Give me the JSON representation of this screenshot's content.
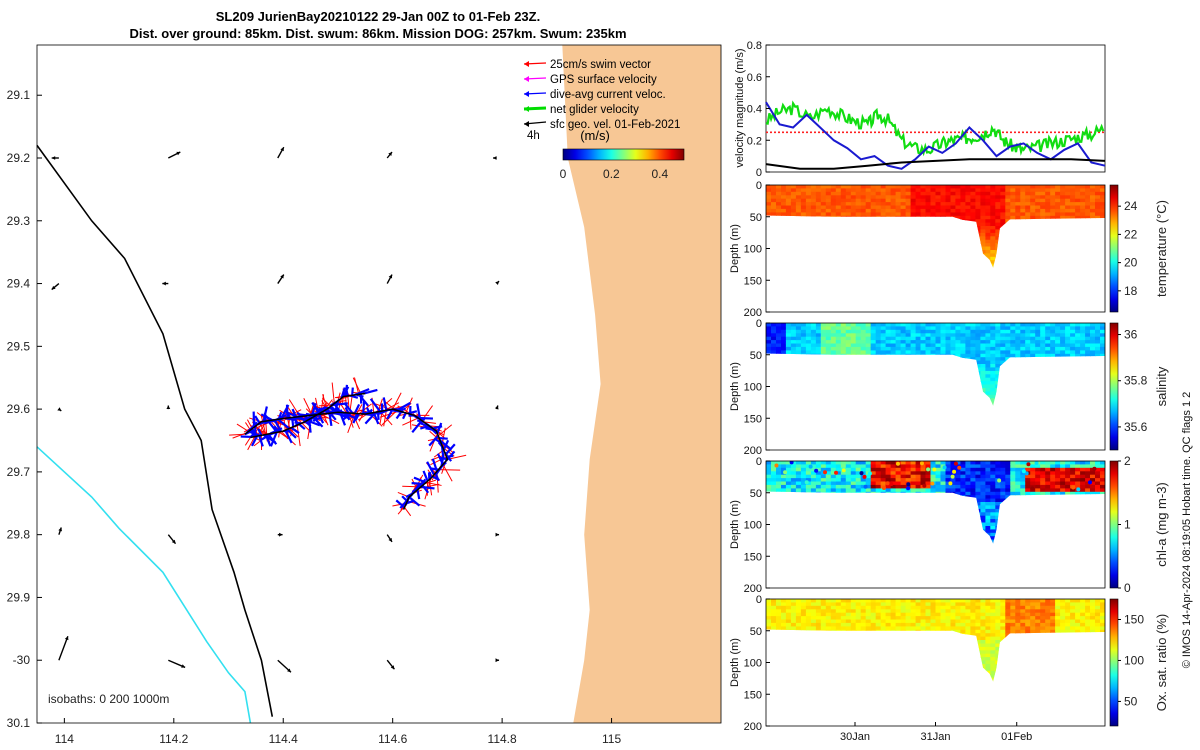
{
  "chart_data": [
    {
      "type": "map",
      "title": [
        "SL209 JurienBay20210122 29-Jan 00Z to 01-Feb 23Z.",
        "Dist. over ground: 85km. Dist. swum: 86km. Mission DOG: 257km. Swum: 235km"
      ],
      "xlim": [
        113.95,
        115.2
      ],
      "ylim": [
        30.1,
        29.02
      ],
      "x_ticks": [
        114,
        114.2,
        114.4,
        114.6,
        114.8,
        115
      ],
      "x_tick_labels": [
        "114",
        "114.2",
        "114.4",
        "114.6",
        "114.8",
        "115"
      ],
      "y_ticks": [
        29.1,
        29.2,
        29.3,
        29.4,
        29.5,
        29.6,
        29.7,
        29.8,
        29.9,
        30.0,
        30.1
      ],
      "y_tick_labels": [
        "29.1",
        "29.2",
        "29.3",
        "29.4",
        "29.5",
        "29.6",
        "29.7",
        "29.8",
        "29.9",
        "-30",
        "30.1"
      ],
      "legend": [
        "25cm/s swim vector",
        "GPS surface velocity",
        "dive-avg current veloc.",
        "net glider velocity",
        "sfc geo. vel. 01-Feb-2021"
      ],
      "legend_colors": [
        "#ff0000",
        "#ff00ff",
        "#0000ff",
        "#00dd00",
        "#000000"
      ],
      "legend_extra": "4h",
      "colorbar": {
        "label": "(m/s)",
        "ticks": [
          "0",
          "0.2",
          "0.4"
        ],
        "range": [
          0,
          0.5
        ]
      },
      "isobaths_label": "isobaths: 0   200  1000m",
      "coast_color": "#f7c795",
      "isobath_200_color": "#000000",
      "isobath_1000_color": "#33e0f0",
      "track": [
        [
          114.33,
          29.64
        ],
        [
          114.36,
          29.62
        ],
        [
          114.4,
          29.615
        ],
        [
          114.45,
          29.61
        ],
        [
          114.5,
          29.605
        ],
        [
          114.55,
          29.608
        ],
        [
          114.6,
          29.6
        ],
        [
          114.64,
          29.61
        ],
        [
          114.68,
          29.635
        ],
        [
          114.7,
          29.68
        ],
        [
          114.67,
          29.71
        ],
        [
          114.63,
          29.74
        ],
        [
          114.62,
          29.76
        ]
      ],
      "track_loop": [
        [
          114.34,
          29.645
        ],
        [
          114.4,
          29.635
        ],
        [
          114.44,
          29.62
        ],
        [
          114.48,
          29.6
        ],
        [
          114.51,
          29.58
        ],
        [
          114.55,
          29.575
        ]
      ],
      "contour_200": [
        [
          113.95,
          29.18
        ],
        [
          114.05,
          29.3
        ],
        [
          114.11,
          29.36
        ],
        [
          114.18,
          29.48
        ],
        [
          114.22,
          29.6
        ],
        [
          114.25,
          29.65
        ],
        [
          114.27,
          29.76
        ],
        [
          114.31,
          29.86
        ],
        [
          114.33,
          29.92
        ],
        [
          114.36,
          30.0
        ],
        [
          114.38,
          30.09
        ]
      ],
      "contour_1000": [
        [
          113.95,
          29.66
        ],
        [
          114.05,
          29.74
        ],
        [
          114.1,
          29.79
        ],
        [
          114.18,
          29.86
        ],
        [
          114.26,
          29.97
        ],
        [
          114.3,
          30.02
        ],
        [
          114.33,
          30.05
        ],
        [
          114.34,
          30.1
        ]
      ],
      "coastline": [
        [
          114.91,
          29.0
        ],
        [
          114.92,
          29.2
        ],
        [
          114.95,
          29.31
        ],
        [
          114.97,
          29.45
        ],
        [
          114.98,
          29.56
        ],
        [
          114.96,
          29.68
        ],
        [
          114.95,
          29.8
        ],
        [
          114.96,
          29.92
        ],
        [
          114.95,
          30.0
        ],
        [
          114.93,
          30.1
        ]
      ],
      "arrows": [
        {
          "lon": 113.99,
          "lat": 29.2,
          "u": -0.012,
          "v": 0
        },
        {
          "lon": 114.19,
          "lat": 29.2,
          "u": 0.02,
          "v": -0.01
        },
        {
          "lon": 114.39,
          "lat": 29.2,
          "u": 0.01,
          "v": -0.018
        },
        {
          "lon": 114.59,
          "lat": 29.2,
          "u": 0.008,
          "v": -0.01
        },
        {
          "lon": 114.79,
          "lat": 29.2,
          "u": -0.006,
          "v": 0
        },
        {
          "lon": 113.99,
          "lat": 29.4,
          "u": -0.012,
          "v": 0.01
        },
        {
          "lon": 114.19,
          "lat": 29.4,
          "u": -0.01,
          "v": 0
        },
        {
          "lon": 114.39,
          "lat": 29.4,
          "u": 0.01,
          "v": -0.015
        },
        {
          "lon": 114.59,
          "lat": 29.4,
          "u": 0.008,
          "v": -0.015
        },
        {
          "lon": 114.79,
          "lat": 29.4,
          "u": 0.004,
          "v": -0.004
        },
        {
          "lon": 113.99,
          "lat": 29.6,
          "u": 0.004,
          "v": 0.003
        },
        {
          "lon": 114.19,
          "lat": 29.6,
          "u": 0,
          "v": -0.006
        },
        {
          "lon": 114.79,
          "lat": 29.6,
          "u": 0.002,
          "v": -0.006
        },
        {
          "lon": 113.99,
          "lat": 29.8,
          "u": 0.004,
          "v": -0.012
        },
        {
          "lon": 114.19,
          "lat": 29.8,
          "u": 0.012,
          "v": 0.015
        },
        {
          "lon": 114.39,
          "lat": 29.8,
          "u": 0.008,
          "v": 0
        },
        {
          "lon": 114.59,
          "lat": 29.8,
          "u": 0.008,
          "v": 0.012
        },
        {
          "lon": 114.79,
          "lat": 29.8,
          "u": 0.004,
          "v": 0
        },
        {
          "lon": 113.99,
          "lat": 30.0,
          "u": 0.015,
          "v": -0.04
        },
        {
          "lon": 114.19,
          "lat": 30.0,
          "u": 0.028,
          "v": 0.012
        },
        {
          "lon": 114.39,
          "lat": 30.0,
          "u": 0.022,
          "v": 0.02
        },
        {
          "lon": 114.59,
          "lat": 30.0,
          "u": 0.012,
          "v": 0.015
        },
        {
          "lon": 114.79,
          "lat": 30.0,
          "u": 0.004,
          "v": 0
        }
      ]
    },
    {
      "type": "line",
      "ylabel": "velocity magnitude (m/s)",
      "ylim": [
        0,
        0.8
      ],
      "y_ticks": [
        0,
        0.2,
        0.4,
        0.6,
        0.8
      ],
      "y_tick_labels": [
        "0",
        "0.2",
        "0.4",
        "0.6",
        "0.8"
      ],
      "xlim": [
        0,
        1
      ],
      "series": [
        {
          "name": "25cm/s swim vector",
          "color": "#ff2020",
          "style": "dotted",
          "x": [
            0,
            1
          ],
          "y": [
            0.25,
            0.25
          ]
        },
        {
          "name": "net glider velocity",
          "color": "#11dd11",
          "x": [
            0,
            0.04,
            0.08,
            0.13,
            0.18,
            0.22,
            0.26,
            0.3,
            0.33,
            0.36,
            0.4,
            0.44,
            0.48,
            0.52,
            0.55,
            0.58,
            0.61,
            0.64,
            0.67,
            0.7,
            0.73,
            0.76,
            0.8,
            0.84,
            0.88,
            0.92,
            0.96,
            1.0
          ],
          "y": [
            0.32,
            0.38,
            0.4,
            0.34,
            0.4,
            0.36,
            0.32,
            0.3,
            0.36,
            0.33,
            0.2,
            0.15,
            0.14,
            0.18,
            0.2,
            0.21,
            0.22,
            0.24,
            0.28,
            0.2,
            0.16,
            0.14,
            0.16,
            0.18,
            0.2,
            0.22,
            0.24,
            0.28
          ]
        },
        {
          "name": "dive-avg current veloc.",
          "color": "#1a1ad0",
          "x": [
            0,
            0.04,
            0.08,
            0.12,
            0.16,
            0.2,
            0.24,
            0.28,
            0.32,
            0.36,
            0.4,
            0.44,
            0.48,
            0.52,
            0.56,
            0.6,
            0.64,
            0.68,
            0.72,
            0.76,
            0.8,
            0.84,
            0.88,
            0.92,
            0.96,
            1.0
          ],
          "y": [
            0.44,
            0.3,
            0.28,
            0.36,
            0.28,
            0.2,
            0.15,
            0.08,
            0.1,
            0.04,
            0.02,
            0.08,
            0.16,
            0.12,
            0.18,
            0.28,
            0.2,
            0.1,
            0.16,
            0.18,
            0.12,
            0.08,
            0.14,
            0.18,
            0.06,
            0.04
          ]
        },
        {
          "name": "sfc geo. vel.",
          "color": "#000000",
          "x": [
            0,
            0.1,
            0.2,
            0.3,
            0.4,
            0.5,
            0.6,
            0.7,
            0.8,
            0.9,
            1.0
          ],
          "y": [
            0.05,
            0.02,
            0.02,
            0.04,
            0.06,
            0.07,
            0.08,
            0.08,
            0.08,
            0.08,
            0.07
          ]
        }
      ]
    },
    {
      "type": "heatmap",
      "variable": "temperature",
      "cb_label": "temperature (°C)",
      "ylabel": "Depth (m)",
      "ylim": [
        0,
        200
      ],
      "y_ticks": [
        0,
        50,
        100,
        150,
        200
      ],
      "cb_ticks": [
        18,
        20,
        22,
        24
      ],
      "cb_range": [
        16.5,
        25.5
      ],
      "fill_value": 23.5,
      "depth_profile": [
        [
          0,
          48
        ],
        [
          0.2,
          50
        ],
        [
          0.55,
          50
        ],
        [
          0.58,
          55
        ],
        [
          0.62,
          58
        ],
        [
          0.64,
          108
        ],
        [
          0.66,
          118
        ],
        [
          0.67,
          130
        ],
        [
          0.68,
          108
        ],
        [
          0.69,
          68
        ],
        [
          0.72,
          54
        ],
        [
          1.0,
          52
        ]
      ]
    },
    {
      "type": "heatmap",
      "variable": "salinity",
      "cb_label": "salinity",
      "ylabel": "Depth (m)",
      "ylim": [
        0,
        200
      ],
      "y_ticks": [
        0,
        50,
        100,
        150,
        200
      ],
      "cb_ticks": [
        35.6,
        35.8,
        36
      ],
      "cb_range": [
        35.5,
        36.05
      ],
      "fill_value": 35.72,
      "depth_profile": [
        [
          0,
          48
        ],
        [
          0.2,
          50
        ],
        [
          0.55,
          50
        ],
        [
          0.58,
          55
        ],
        [
          0.62,
          58
        ],
        [
          0.64,
          108
        ],
        [
          0.66,
          118
        ],
        [
          0.67,
          130
        ],
        [
          0.68,
          108
        ],
        [
          0.69,
          68
        ],
        [
          0.72,
          54
        ],
        [
          1.0,
          52
        ]
      ]
    },
    {
      "type": "heatmap",
      "variable": "chl-a",
      "cb_label": "chl-a (mg m-3)",
      "ylabel": "Depth (m)",
      "ylim": [
        0,
        200
      ],
      "y_ticks": [
        0,
        50,
        100,
        150,
        200
      ],
      "cb_ticks": [
        0,
        1,
        2
      ],
      "cb_range": [
        0,
        2
      ],
      "fill_value": 0.7,
      "depth_profile": [
        [
          0,
          48
        ],
        [
          0.2,
          50
        ],
        [
          0.55,
          50
        ],
        [
          0.58,
          55
        ],
        [
          0.62,
          58
        ],
        [
          0.64,
          108
        ],
        [
          0.66,
          118
        ],
        [
          0.67,
          130
        ],
        [
          0.68,
          108
        ],
        [
          0.69,
          68
        ],
        [
          0.72,
          54
        ],
        [
          1.0,
          52
        ]
      ]
    },
    {
      "type": "heatmap",
      "variable": "oxygen",
      "cb_label": "Ox. sat. ratio (%)",
      "ylabel": "Depth (m)",
      "ylim": [
        0,
        200
      ],
      "y_ticks": [
        0,
        50,
        100,
        150,
        200
      ],
      "cb_ticks": [
        50,
        100,
        150
      ],
      "cb_range": [
        20,
        175
      ],
      "fill_value": 112,
      "x_tick_labels": [
        "30Jan",
        "31Jan",
        "01Feb"
      ],
      "x_tick_pos": [
        0.2625,
        0.5,
        0.7396
      ],
      "depth_profile": [
        [
          0,
          48
        ],
        [
          0.2,
          50
        ],
        [
          0.55,
          50
        ],
        [
          0.58,
          55
        ],
        [
          0.62,
          58
        ],
        [
          0.64,
          108
        ],
        [
          0.66,
          118
        ],
        [
          0.67,
          130
        ],
        [
          0.68,
          108
        ],
        [
          0.69,
          68
        ],
        [
          0.72,
          54
        ],
        [
          1.0,
          52
        ]
      ]
    }
  ],
  "footer": "© IMOS 14-Apr-2024 08:19:05 Hobart time. QC flags 1  2"
}
